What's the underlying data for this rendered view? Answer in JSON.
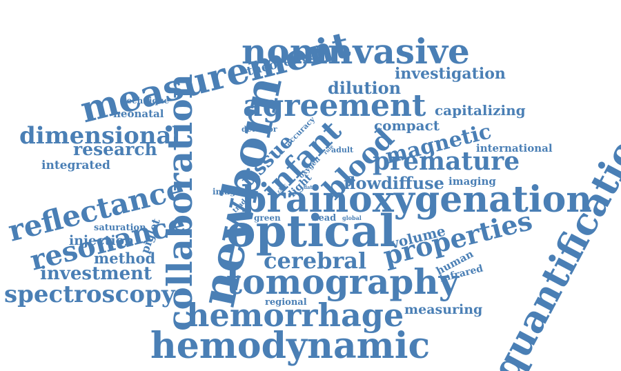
{
  "color": "#4a7fb5",
  "words": [
    "measurement",
    "noninvasive",
    "theoretical",
    "investigation",
    "dilution",
    "agreement",
    "capitalizing",
    "technique",
    "neonatal",
    "compact",
    "dimensional",
    "research",
    "magnetic",
    "international",
    "integrated",
    "premature",
    "detector",
    "accuracy",
    "tissue",
    "infant",
    "blood",
    "oxygen",
    "adult",
    "reflectance",
    "flowdiffuse",
    "imaging",
    "light",
    "cbfc",
    "rule",
    "data",
    "image",
    "trade",
    "newborn",
    "collaboration",
    "resonance",
    "brainoxygenation",
    "quantification",
    "green",
    "head",
    "global",
    "saturation",
    "piglet",
    "injection",
    "volume",
    "optical",
    "properties",
    "human",
    "method",
    "infrared",
    "investment",
    "cerebral",
    "tomography",
    "spectroscopy",
    "regional",
    "measuring",
    "hemorrhage",
    "hemodynamic"
  ]
}
